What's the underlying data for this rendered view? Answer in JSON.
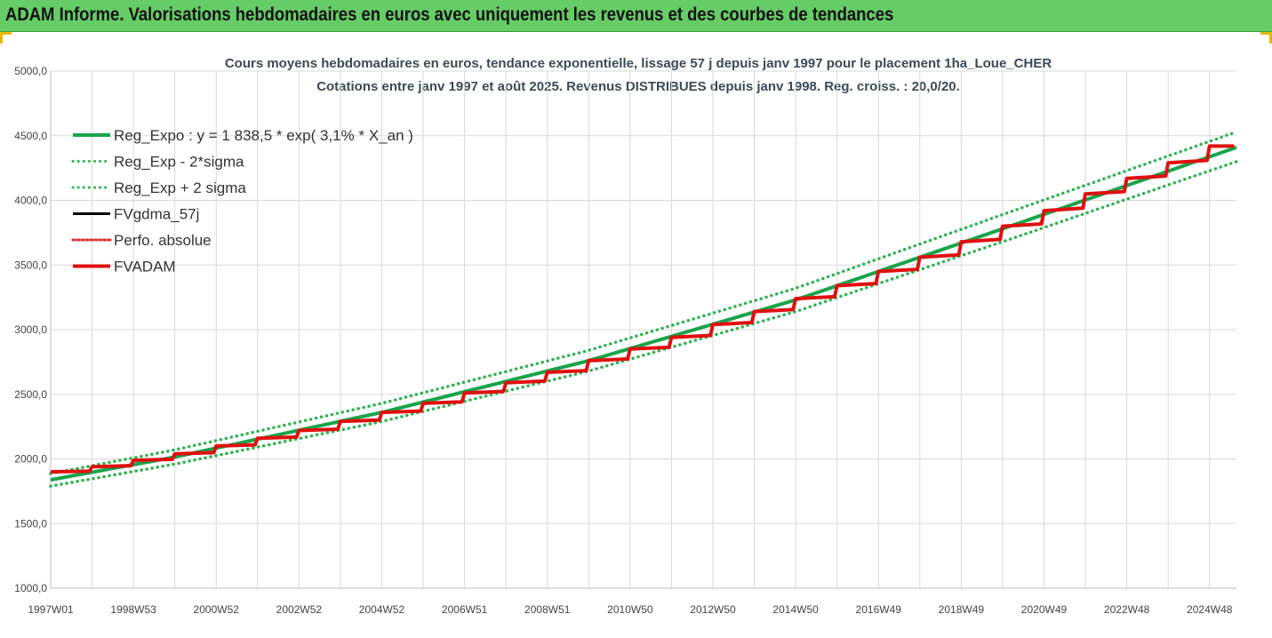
{
  "banner": {
    "title": "ADAM Informe. Valorisations hebdomadaires en euros avec uniquement les revenus et des courbes de tendances"
  },
  "chart_data": {
    "type": "line",
    "title": "Cours moyens hebdomadaires en euros, tendance exponentielle, lissage 57 j depuis janv 1997 pour le placement 1ha_Loue_CHER",
    "subtitle": "Cotations entre janv 1997 et août 2025. Revenus DISTRIBUES depuis janv 1998. Reg. croiss. : 20,0/20.",
    "ylim": [
      1000,
      5000
    ],
    "yticks": [
      "1000,0",
      "1500,0",
      "2000,0",
      "2500,0",
      "3000,0",
      "3500,0",
      "4000,0",
      "4500,0",
      "5000,0"
    ],
    "xticks": [
      {
        "label": "1997W01",
        "x": 1997.0
      },
      {
        "label": "1998W53",
        "x": 1999.0
      },
      {
        "label": "2000W52",
        "x": 2001.0
      },
      {
        "label": "2002W52",
        "x": 2003.0
      },
      {
        "label": "2004W52",
        "x": 2005.0
      },
      {
        "label": "2006W51",
        "x": 2007.0
      },
      {
        "label": "2008W51",
        "x": 2009.0
      },
      {
        "label": "2010W50",
        "x": 2011.0
      },
      {
        "label": "2012W50",
        "x": 2013.0
      },
      {
        "label": "2014W50",
        "x": 2015.0
      },
      {
        "label": "2016W49",
        "x": 2017.0
      },
      {
        "label": "2018W49",
        "x": 2019.0
      },
      {
        "label": "2020W49",
        "x": 2021.0
      },
      {
        "label": "2022W48",
        "x": 2023.0
      },
      {
        "label": "2024W48",
        "x": 2025.0
      }
    ],
    "xlim": [
      1997.0,
      2025.65
    ],
    "grid": true,
    "legend_position": "top-left",
    "regression": {
      "a": 1838.5,
      "rate": 0.031
    },
    "series": [
      {
        "name": "Reg_Expo : y = 1 838,5 * exp( 3,1% *  X_an )",
        "color": "#1aa34a",
        "style": "solid",
        "x": [
          1997.0,
          2000.0,
          2005.0,
          2010.0,
          2015.0,
          2020.0,
          2025.65
        ],
        "values": [
          1838.5,
          2015.0,
          2360.0,
          2760.0,
          3230.0,
          3780.0,
          4410.0
        ]
      },
      {
        "name": "Reg_Exp - 2*sigma",
        "color": "#2db34f",
        "style": "dotted",
        "x": [
          1997.0,
          2000.0,
          2005.0,
          2010.0,
          2015.0,
          2020.0,
          2025.65
        ],
        "values": [
          1790.0,
          1960.0,
          2290.0,
          2680.0,
          3140.0,
          3680.0,
          4300.0
        ]
      },
      {
        "name": "Reg_Exp + 2 sigma",
        "color": "#2db34f",
        "style": "dotted",
        "x": [
          1997.0,
          2000.0,
          2005.0,
          2010.0,
          2015.0,
          2020.0,
          2025.65
        ],
        "values": [
          1887.0,
          2070.0,
          2430.0,
          2840.0,
          3320.0,
          3890.0,
          4530.0
        ]
      },
      {
        "name": "FVgdma_57j",
        "color": "#000000",
        "style": "solid",
        "x": [
          1997.0,
          1998.0,
          1999.0,
          2000.0,
          2001.0,
          2002.0,
          2003.0,
          2004.0,
          2005.0,
          2006.0,
          2007.0,
          2008.0,
          2009.0,
          2010.0,
          2011.0,
          2012.0,
          2013.0,
          2014.0,
          2015.0,
          2016.0,
          2017.0,
          2018.0,
          2019.0,
          2020.0,
          2021.0,
          2022.0,
          2023.0,
          2024.0,
          2025.0
        ],
        "values": [
          1900,
          1940,
          1990,
          2040,
          2100,
          2160,
          2220,
          2290,
          2360,
          2430,
          2510,
          2590,
          2670,
          2760,
          2850,
          2940,
          3040,
          3140,
          3240,
          3340,
          3450,
          3560,
          3680,
          3800,
          3920,
          4050,
          4170,
          4290,
          4420
        ]
      },
      {
        "name": "Perfo. absolue",
        "color": "#e03030",
        "style": "dotted",
        "x": [
          1997.0,
          1998.0,
          1999.0,
          2000.0,
          2001.0,
          2002.0,
          2003.0,
          2004.0,
          2005.0,
          2006.0,
          2007.0,
          2008.0,
          2009.0,
          2010.0,
          2011.0,
          2012.0,
          2013.0,
          2014.0,
          2015.0,
          2016.0,
          2017.0,
          2018.0,
          2019.0,
          2020.0,
          2021.0,
          2022.0,
          2023.0,
          2024.0,
          2025.0
        ],
        "values": [
          1900,
          1940,
          1990,
          2040,
          2100,
          2160,
          2220,
          2290,
          2360,
          2430,
          2510,
          2590,
          2670,
          2760,
          2850,
          2940,
          3040,
          3140,
          3240,
          3340,
          3450,
          3560,
          3680,
          3800,
          3920,
          4050,
          4170,
          4290,
          4420
        ]
      },
      {
        "name": "FVADAM",
        "color": "#e01010",
        "style": "step",
        "x": [
          1997.0,
          1998.0,
          1999.0,
          2000.0,
          2001.0,
          2002.0,
          2003.0,
          2004.0,
          2005.0,
          2006.0,
          2007.0,
          2008.0,
          2009.0,
          2010.0,
          2011.0,
          2012.0,
          2013.0,
          2014.0,
          2015.0,
          2016.0,
          2017.0,
          2018.0,
          2019.0,
          2020.0,
          2021.0,
          2022.0,
          2023.0,
          2024.0,
          2025.0
        ],
        "values": [
          1900,
          1940,
          1990,
          2040,
          2100,
          2160,
          2220,
          2290,
          2360,
          2430,
          2510,
          2590,
          2670,
          2760,
          2850,
          2940,
          3040,
          3140,
          3240,
          3340,
          3450,
          3560,
          3680,
          3800,
          3920,
          4050,
          4170,
          4290,
          4420
        ]
      }
    ]
  }
}
